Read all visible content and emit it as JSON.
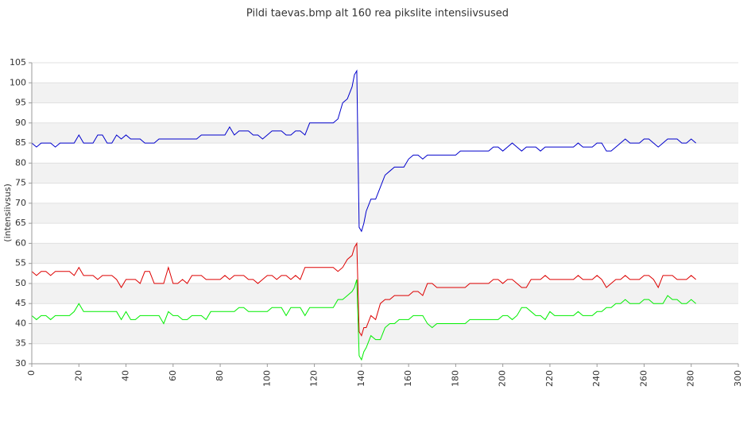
{
  "chart_data": {
    "type": "line",
    "title": "Pildi taevas.bmp alt 160 rea pikslite intensiivsused",
    "y_label": "(intensiivsus)",
    "xlim": [
      0,
      300
    ],
    "xticks": [
      0,
      20,
      40,
      60,
      80,
      100,
      120,
      140,
      160,
      180,
      200,
      220,
      240,
      260,
      280,
      300
    ],
    "ylim": [
      30,
      105
    ],
    "yticks": [
      30,
      35,
      40,
      45,
      50,
      55,
      60,
      65,
      70,
      75,
      80,
      85,
      90,
      95,
      100,
      105
    ],
    "grid": true,
    "x": [
      0,
      2,
      4,
      6,
      8,
      10,
      12,
      14,
      16,
      18,
      20,
      22,
      24,
      26,
      28,
      30,
      32,
      34,
      36,
      38,
      40,
      42,
      44,
      46,
      48,
      50,
      52,
      54,
      56,
      58,
      60,
      62,
      64,
      66,
      68,
      70,
      72,
      74,
      76,
      78,
      80,
      82,
      84,
      86,
      88,
      90,
      92,
      94,
      96,
      98,
      100,
      102,
      104,
      106,
      108,
      110,
      112,
      114,
      116,
      118,
      120,
      122,
      124,
      126,
      128,
      130,
      132,
      134,
      136,
      137,
      138,
      139,
      140,
      141,
      142,
      144,
      146,
      148,
      150,
      152,
      154,
      156,
      158,
      160,
      162,
      164,
      166,
      168,
      170,
      172,
      174,
      176,
      178,
      180,
      182,
      184,
      186,
      188,
      190,
      192,
      194,
      196,
      198,
      200,
      202,
      204,
      206,
      208,
      210,
      212,
      214,
      216,
      218,
      220,
      222,
      224,
      226,
      228,
      230,
      232,
      234,
      236,
      238,
      240,
      242,
      244,
      246,
      248,
      250,
      252,
      254,
      256,
      258,
      260,
      262,
      264,
      266,
      268,
      270,
      272,
      274,
      276,
      278,
      280,
      282
    ],
    "series": [
      {
        "color": "#0000cc",
        "values": [
          85,
          84,
          85,
          85,
          85,
          84,
          85,
          85,
          85,
          85,
          87,
          85,
          85,
          85,
          87,
          87,
          85,
          85,
          87,
          86,
          87,
          86,
          86,
          86,
          85,
          85,
          85,
          86,
          86,
          86,
          86,
          86,
          86,
          86,
          86,
          86,
          87,
          87,
          87,
          87,
          87,
          87,
          89,
          87,
          88,
          88,
          88,
          87,
          87,
          86,
          87,
          88,
          88,
          88,
          87,
          87,
          88,
          88,
          87,
          90,
          90,
          90,
          90,
          90,
          90,
          91,
          95,
          96,
          99,
          102,
          103,
          64,
          63,
          65,
          68,
          71,
          71,
          74,
          77,
          78,
          79,
          79,
          79,
          81,
          82,
          82,
          81,
          82,
          82,
          82,
          82,
          82,
          82,
          82,
          83,
          83,
          83,
          83,
          83,
          83,
          83,
          84,
          84,
          83,
          84,
          85,
          84,
          83,
          84,
          84,
          84,
          83,
          84,
          84,
          84,
          84,
          84,
          84,
          84,
          85,
          84,
          84,
          84,
          85,
          85,
          83,
          83,
          84,
          85,
          86,
          85,
          85,
          85,
          86,
          86,
          85,
          84,
          85,
          86,
          86,
          86,
          85,
          85,
          86,
          85
        ]
      },
      {
        "color": "#dd0000",
        "values": [
          53,
          52,
          53,
          53,
          52,
          53,
          53,
          53,
          53,
          52,
          54,
          52,
          52,
          52,
          51,
          52,
          52,
          52,
          51,
          49,
          51,
          51,
          51,
          50,
          53,
          53,
          50,
          50,
          50,
          54,
          50,
          50,
          51,
          50,
          52,
          52,
          52,
          51,
          51,
          51,
          51,
          52,
          51,
          52,
          52,
          52,
          51,
          51,
          50,
          51,
          52,
          52,
          51,
          52,
          52,
          51,
          52,
          51,
          54,
          54,
          54,
          54,
          54,
          54,
          54,
          53,
          54,
          56,
          57,
          59,
          60,
          38,
          37,
          39,
          39,
          42,
          41,
          45,
          46,
          46,
          47,
          47,
          47,
          47,
          48,
          48,
          47,
          50,
          50,
          49,
          49,
          49,
          49,
          49,
          49,
          49,
          50,
          50,
          50,
          50,
          50,
          51,
          51,
          50,
          51,
          51,
          50,
          49,
          49,
          51,
          51,
          51,
          52,
          51,
          51,
          51,
          51,
          51,
          51,
          52,
          51,
          51,
          51,
          52,
          51,
          49,
          50,
          51,
          51,
          52,
          51,
          51,
          51,
          52,
          52,
          51,
          49,
          52,
          52,
          52,
          51,
          51,
          51,
          52,
          51
        ]
      },
      {
        "color": "#00ee00",
        "values": [
          42,
          41,
          42,
          42,
          41,
          42,
          42,
          42,
          42,
          43,
          45,
          43,
          43,
          43,
          43,
          43,
          43,
          43,
          43,
          41,
          43,
          41,
          41,
          42,
          42,
          42,
          42,
          42,
          40,
          43,
          42,
          42,
          41,
          41,
          42,
          42,
          42,
          41,
          43,
          43,
          43,
          43,
          43,
          43,
          44,
          44,
          43,
          43,
          43,
          43,
          43,
          44,
          44,
          44,
          42,
          44,
          44,
          44,
          42,
          44,
          44,
          44,
          44,
          44,
          44,
          46,
          46,
          47,
          48,
          49,
          51,
          32,
          31,
          33,
          34,
          37,
          36,
          36,
          39,
          40,
          40,
          41,
          41,
          41,
          42,
          42,
          42,
          40,
          39,
          40,
          40,
          40,
          40,
          40,
          40,
          40,
          41,
          41,
          41,
          41,
          41,
          41,
          41,
          42,
          42,
          41,
          42,
          44,
          44,
          43,
          42,
          42,
          41,
          43,
          42,
          42,
          42,
          42,
          42,
          43,
          42,
          42,
          42,
          43,
          43,
          44,
          44,
          45,
          45,
          46,
          45,
          45,
          45,
          46,
          46,
          45,
          45,
          45,
          47,
          46,
          46,
          45,
          45,
          46,
          45
        ]
      }
    ]
  }
}
